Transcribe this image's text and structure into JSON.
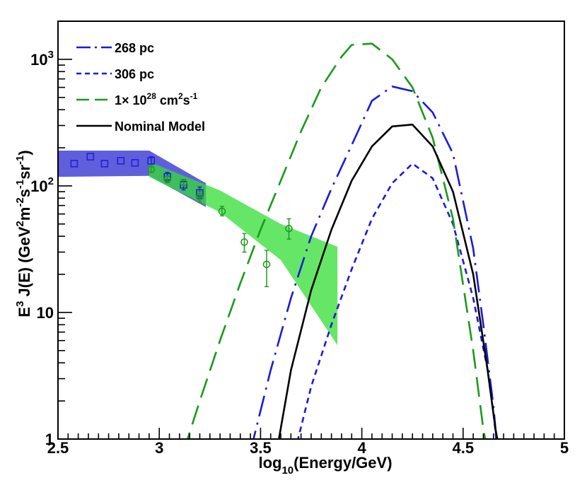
{
  "chart_data": {
    "type": "line",
    "title": "",
    "xlabel": {
      "base": "log",
      "sub": "10",
      "rest": "(Energy/GeV)"
    },
    "ylabel": {
      "p1": "E",
      "s1": "3",
      "p2": " J(E) (GeV",
      "s2": "2",
      "p3": "m",
      "s3": "-2",
      "p4": "s",
      "s4": "-1",
      "p5": "sr",
      "s5": "-1",
      "p6": ")"
    },
    "x_scale": "linear",
    "y_scale": "log",
    "xlim": [
      2.5,
      5.0
    ],
    "ylim": [
      1,
      2000
    ],
    "x_ticks": [
      {
        "v": 2.5,
        "label": "2.5"
      },
      {
        "v": 3.0,
        "label": "3"
      },
      {
        "v": 3.5,
        "label": "3.5"
      },
      {
        "v": 4.0,
        "label": "4"
      },
      {
        "v": 4.5,
        "label": "4.5"
      },
      {
        "v": 5.0,
        "label": "5"
      }
    ],
    "y_ticks": [
      {
        "v": 1,
        "base": "1",
        "exp": ""
      },
      {
        "v": 10,
        "base": "10",
        "exp": ""
      },
      {
        "v": 100,
        "base": "10",
        "exp": "2"
      },
      {
        "v": 1000,
        "base": "10",
        "exp": "3"
      }
    ],
    "legend": {
      "position": "top-left",
      "entries": [
        {
          "series": "268 pc",
          "text": "268 pc"
        },
        {
          "series": "306 pc",
          "text": "306 pc"
        },
        {
          "series": "1e28",
          "text": "1× 10",
          "sup1": "28",
          "text2": " cm",
          "sup2": "2",
          "text3": "s",
          "sup3": "-1"
        },
        {
          "series": "Nominal Model",
          "text": "Nominal Model"
        }
      ]
    },
    "series": [
      {
        "name": "268 pc",
        "color": "#1a1adc",
        "dash": "long-dash-dot",
        "x": [
          3.45,
          3.55,
          3.65,
          3.75,
          3.85,
          3.95,
          4.05,
          4.15,
          4.25,
          4.35,
          4.45,
          4.55,
          4.6,
          4.65,
          4.67
        ],
        "y": [
          0.8,
          3.5,
          13,
          40,
          95,
          210,
          470,
          610,
          560,
          380,
          180,
          32,
          8,
          1.8,
          0.8
        ]
      },
      {
        "name": "306 pc",
        "color": "#1a1adc",
        "dash": "short-dash",
        "x": [
          3.67,
          3.75,
          3.85,
          3.95,
          4.05,
          4.15,
          4.25,
          4.35,
          4.45,
          4.55,
          4.62,
          4.65,
          4.67
        ],
        "y": [
          0.8,
          2.6,
          8,
          22,
          55,
          105,
          150,
          115,
          50,
          13,
          3.6,
          1.6,
          0.8
        ]
      },
      {
        "name": "1e28",
        "color": "#1a9a1a",
        "dash": "long-dash",
        "x": [
          3.12,
          3.2,
          3.3,
          3.4,
          3.5,
          3.6,
          3.7,
          3.8,
          3.9,
          3.95,
          4.05,
          4.15,
          4.25,
          4.35,
          4.45,
          4.55,
          4.6,
          4.62
        ],
        "y": [
          0.8,
          2.0,
          6,
          17,
          45,
          110,
          270,
          600,
          1050,
          1300,
          1330,
          1000,
          600,
          240,
          55,
          5,
          1.2,
          0.8
        ]
      },
      {
        "name": "Nominal Model",
        "color": "#000000",
        "dash": "solid",
        "x": [
          3.58,
          3.65,
          3.75,
          3.85,
          3.95,
          4.05,
          4.15,
          4.25,
          4.35,
          4.45,
          4.55,
          4.62,
          4.66,
          4.68
        ],
        "y": [
          0.8,
          3.5,
          15,
          45,
          110,
          205,
          295,
          305,
          205,
          90,
          20,
          3.6,
          1.2,
          0.8
        ]
      }
    ],
    "bands": [
      {
        "name": "blue band",
        "color": "#2a2ad0",
        "upper": [
          [
            2.5,
            190
          ],
          [
            2.95,
            190
          ],
          [
            3.23,
            105
          ]
        ],
        "lower": [
          [
            3.23,
            68
          ],
          [
            2.95,
            120
          ],
          [
            2.5,
            118
          ]
        ]
      },
      {
        "name": "green band",
        "color": "#33dd33",
        "upper": [
          [
            2.95,
            155
          ],
          [
            3.3,
            92
          ],
          [
            3.6,
            50
          ],
          [
            3.88,
            33
          ]
        ],
        "lower": [
          [
            3.88,
            5.5
          ],
          [
            3.6,
            26
          ],
          [
            3.3,
            62
          ],
          [
            2.95,
            118
          ]
        ]
      }
    ],
    "markers": [
      {
        "name": "blue squares",
        "shape": "square",
        "color": "#2020d8",
        "points": [
          {
            "x": 2.58,
            "y": 150,
            "lo": 150,
            "hi": 150
          },
          {
            "x": 2.66,
            "y": 170,
            "lo": 170,
            "hi": 170
          },
          {
            "x": 2.73,
            "y": 150,
            "lo": 150,
            "hi": 150
          },
          {
            "x": 2.81,
            "y": 158,
            "lo": 158,
            "hi": 158
          },
          {
            "x": 2.88,
            "y": 152,
            "lo": 152,
            "hi": 152
          },
          {
            "x": 2.96,
            "y": 158,
            "lo": 148,
            "hi": 170
          },
          {
            "x": 3.04,
            "y": 118,
            "lo": 108,
            "hi": 128
          },
          {
            "x": 3.12,
            "y": 102,
            "lo": 93,
            "hi": 112
          },
          {
            "x": 3.2,
            "y": 88,
            "lo": 80,
            "hi": 98
          }
        ]
      },
      {
        "name": "green circles",
        "shape": "circle",
        "color": "#229922",
        "points": [
          {
            "x": 2.96,
            "y": 135,
            "lo": 128,
            "hi": 142
          },
          {
            "x": 3.04,
            "y": 113,
            "lo": 106,
            "hi": 120
          },
          {
            "x": 3.12,
            "y": 106,
            "lo": 101,
            "hi": 111
          },
          {
            "x": 3.2,
            "y": 82,
            "lo": 74,
            "hi": 90
          },
          {
            "x": 3.31,
            "y": 63,
            "lo": 58,
            "hi": 69
          },
          {
            "x": 3.42,
            "y": 36,
            "lo": 30,
            "hi": 42
          },
          {
            "x": 3.53,
            "y": 24,
            "lo": 16,
            "hi": 31
          },
          {
            "x": 3.64,
            "y": 46,
            "lo": 38,
            "hi": 55
          }
        ]
      }
    ]
  }
}
